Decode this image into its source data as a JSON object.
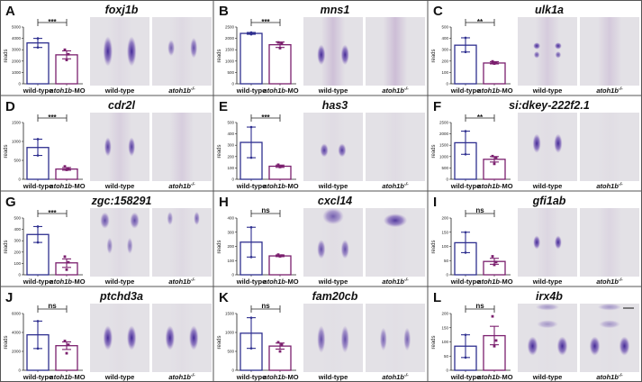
{
  "colors": {
    "wildtype": "#2e2f8f",
    "morphant": "#7b1f6e",
    "image_bg": "#e3e1e6",
    "stain": "#4a2a9a"
  },
  "labels": {
    "wildtype": "wild-type",
    "mo_gene": "atoh1b",
    "mo_suffix": "-MO",
    "mutant_gene": "atoh1b",
    "mutant_sup": "-/-",
    "ylabel": "reads"
  },
  "chart_data": [
    {
      "type": "bar",
      "letter": "A",
      "title": "foxj1b",
      "ylabel": "reads",
      "categories": [
        "wild-type",
        "atoh1b-MO"
      ],
      "ylim": [
        0,
        5000
      ],
      "yticks": [
        0,
        1000,
        2000,
        3000,
        4000,
        5000
      ],
      "significance": "***",
      "series": [
        {
          "name": "wild-type",
          "mean": 3600,
          "error": [
            3200,
            4000
          ],
          "points": [
            4000,
            3200
          ]
        },
        {
          "name": "atoh1b-MO",
          "mean": 2550,
          "error": [
            2200,
            2900
          ],
          "points": [
            3000,
            2600,
            2100
          ]
        }
      ]
    },
    {
      "type": "bar",
      "letter": "B",
      "title": "mns1",
      "ylabel": "reads",
      "categories": [
        "wild-type",
        "atoh1b-MO"
      ],
      "ylim": [
        0,
        2500
      ],
      "yticks": [
        0,
        500,
        1000,
        1500,
        2000,
        2500
      ],
      "significance": "***",
      "series": [
        {
          "name": "wild-type",
          "mean": 2220,
          "error": [
            2180,
            2260
          ],
          "points": [
            2260,
            2180
          ]
        },
        {
          "name": "atoh1b-MO",
          "mean": 1720,
          "error": [
            1600,
            1840
          ],
          "points": [
            1820,
            1780,
            1570
          ]
        }
      ]
    },
    {
      "type": "bar",
      "letter": "C",
      "title": "ulk1a",
      "ylabel": "reads",
      "categories": [
        "wild-type",
        "atoh1b-MO"
      ],
      "ylim": [
        0,
        500
      ],
      "yticks": [
        0,
        100,
        200,
        300,
        400,
        500
      ],
      "significance": "**",
      "series": [
        {
          "name": "wild-type",
          "mean": 340,
          "error": [
            280,
            405
          ],
          "points": [
            405,
            280
          ]
        },
        {
          "name": "atoh1b-MO",
          "mean": 183,
          "error": [
            175,
            195
          ],
          "points": [
            197,
            185,
            178
          ]
        }
      ]
    },
    {
      "type": "bar",
      "letter": "D",
      "title": "cdr2l",
      "ylabel": "reads",
      "categories": [
        "wild-type",
        "atoh1b-MO"
      ],
      "ylim": [
        0,
        1500
      ],
      "yticks": [
        0,
        500,
        1000,
        1500
      ],
      "significance": "***",
      "series": [
        {
          "name": "wild-type",
          "mean": 840,
          "error": [
            630,
            1060
          ],
          "points": [
            1060,
            630
          ]
        },
        {
          "name": "atoh1b-MO",
          "mean": 270,
          "error": [
            240,
            310
          ],
          "points": [
            340,
            280,
            250
          ]
        }
      ]
    },
    {
      "type": "bar",
      "letter": "E",
      "title": "has3",
      "ylabel": "reads",
      "categories": [
        "wild-type",
        "atoh1b-MO"
      ],
      "ylim": [
        0,
        500
      ],
      "yticks": [
        0,
        100,
        200,
        300,
        400,
        500
      ],
      "significance": "***",
      "series": [
        {
          "name": "wild-type",
          "mean": 325,
          "error": [
            190,
            460
          ],
          "points": [
            460,
            190
          ]
        },
        {
          "name": "atoh1b-MO",
          "mean": 115,
          "error": [
            105,
            125
          ],
          "points": [
            128,
            115,
            108
          ]
        }
      ]
    },
    {
      "type": "bar",
      "letter": "F",
      "title": "si:dkey-222f2.1",
      "ylabel": "reads",
      "categories": [
        "wild-type",
        "atoh1b-MO"
      ],
      "ylim": [
        0,
        2500
      ],
      "yticks": [
        0,
        500,
        1000,
        1500,
        2000,
        2500
      ],
      "significance": "**",
      "series": [
        {
          "name": "wild-type",
          "mean": 1610,
          "error": [
            1100,
            2120
          ],
          "points": [
            2120,
            1100
          ]
        },
        {
          "name": "atoh1b-MO",
          "mean": 880,
          "error": [
            760,
            1000
          ],
          "points": [
            1020,
            960,
            680
          ]
        }
      ]
    },
    {
      "type": "bar",
      "letter": "G",
      "title": "zgc:158291",
      "ylabel": "reads",
      "categories": [
        "wild-type",
        "atoh1b-MO"
      ],
      "ylim": [
        0,
        500
      ],
      "yticks": [
        0,
        100,
        200,
        300,
        400,
        500
      ],
      "significance": "***",
      "series": [
        {
          "name": "wild-type",
          "mean": 355,
          "error": [
            285,
            425
          ],
          "points": [
            425,
            285
          ]
        },
        {
          "name": "atoh1b-MO",
          "mean": 105,
          "error": [
            65,
            140
          ],
          "points": [
            160,
            110,
            45
          ]
        }
      ]
    },
    {
      "type": "bar",
      "letter": "H",
      "title": "cxcl14",
      "ylabel": "reads",
      "categories": [
        "wild-type",
        "atoh1b-MO"
      ],
      "ylim": [
        0,
        400
      ],
      "yticks": [
        0,
        100,
        200,
        300,
        400
      ],
      "significance": "ns",
      "series": [
        {
          "name": "wild-type",
          "mean": 230,
          "error": [
            125,
            335
          ],
          "points": [
            335,
            125
          ]
        },
        {
          "name": "atoh1b-MO",
          "mean": 133,
          "error": [
            128,
            140
          ],
          "points": [
            142,
            135,
            130
          ]
        }
      ]
    },
    {
      "type": "bar",
      "letter": "I",
      "title": "gfi1ab",
      "ylabel": "reads",
      "categories": [
        "wild-type",
        "atoh1b-MO"
      ],
      "ylim": [
        0,
        200
      ],
      "yticks": [
        0,
        50,
        100,
        150,
        200
      ],
      "significance": "ns",
      "series": [
        {
          "name": "wild-type",
          "mean": 113,
          "error": [
            78,
            150
          ],
          "points": [
            150,
            78
          ]
        },
        {
          "name": "atoh1b-MO",
          "mean": 47,
          "error": [
            37,
            58
          ],
          "points": [
            65,
            45,
            35
          ]
        }
      ]
    },
    {
      "type": "bar",
      "letter": "J",
      "title": "ptchd3a",
      "ylabel": "reads",
      "categories": [
        "wild-type",
        "atoh1b-MO"
      ],
      "ylim": [
        0,
        6000
      ],
      "yticks": [
        0,
        2000,
        4000,
        6000
      ],
      "significance": "ns",
      "series": [
        {
          "name": "wild-type",
          "mean": 3750,
          "error": [
            2300,
            5200
          ],
          "points": [
            5200,
            2300
          ]
        },
        {
          "name": "atoh1b-MO",
          "mean": 2600,
          "error": [
            2200,
            3000
          ],
          "points": [
            3100,
            2700,
            1800
          ]
        }
      ]
    },
    {
      "type": "bar",
      "letter": "K",
      "title": "fam20cb",
      "ylabel": "reads",
      "categories": [
        "wild-type",
        "atoh1b-MO"
      ],
      "ylim": [
        0,
        1500
      ],
      "yticks": [
        0,
        500,
        1000,
        1500
      ],
      "significance": "ns",
      "series": [
        {
          "name": "wild-type",
          "mean": 980,
          "error": [
            580,
            1390
          ],
          "points": [
            1390,
            580
          ]
        },
        {
          "name": "atoh1b-MO",
          "mean": 640,
          "error": [
            560,
            720
          ],
          "points": [
            740,
            680,
            500
          ]
        }
      ]
    },
    {
      "type": "bar",
      "letter": "L",
      "title": "irx4b",
      "ylabel": "reads",
      "categories": [
        "wild-type",
        "atoh1b-MO"
      ],
      "ylim": [
        0,
        200
      ],
      "yticks": [
        0,
        50,
        100,
        150,
        200
      ],
      "significance": "ns",
      "series": [
        {
          "name": "wild-type",
          "mean": 85,
          "error": [
            45,
            125
          ],
          "points": [
            125,
            45
          ]
        },
        {
          "name": "atoh1b-MO",
          "mean": 122,
          "error": [
            90,
            155
          ],
          "points": [
            190,
            105,
            85
          ]
        }
      ]
    }
  ]
}
